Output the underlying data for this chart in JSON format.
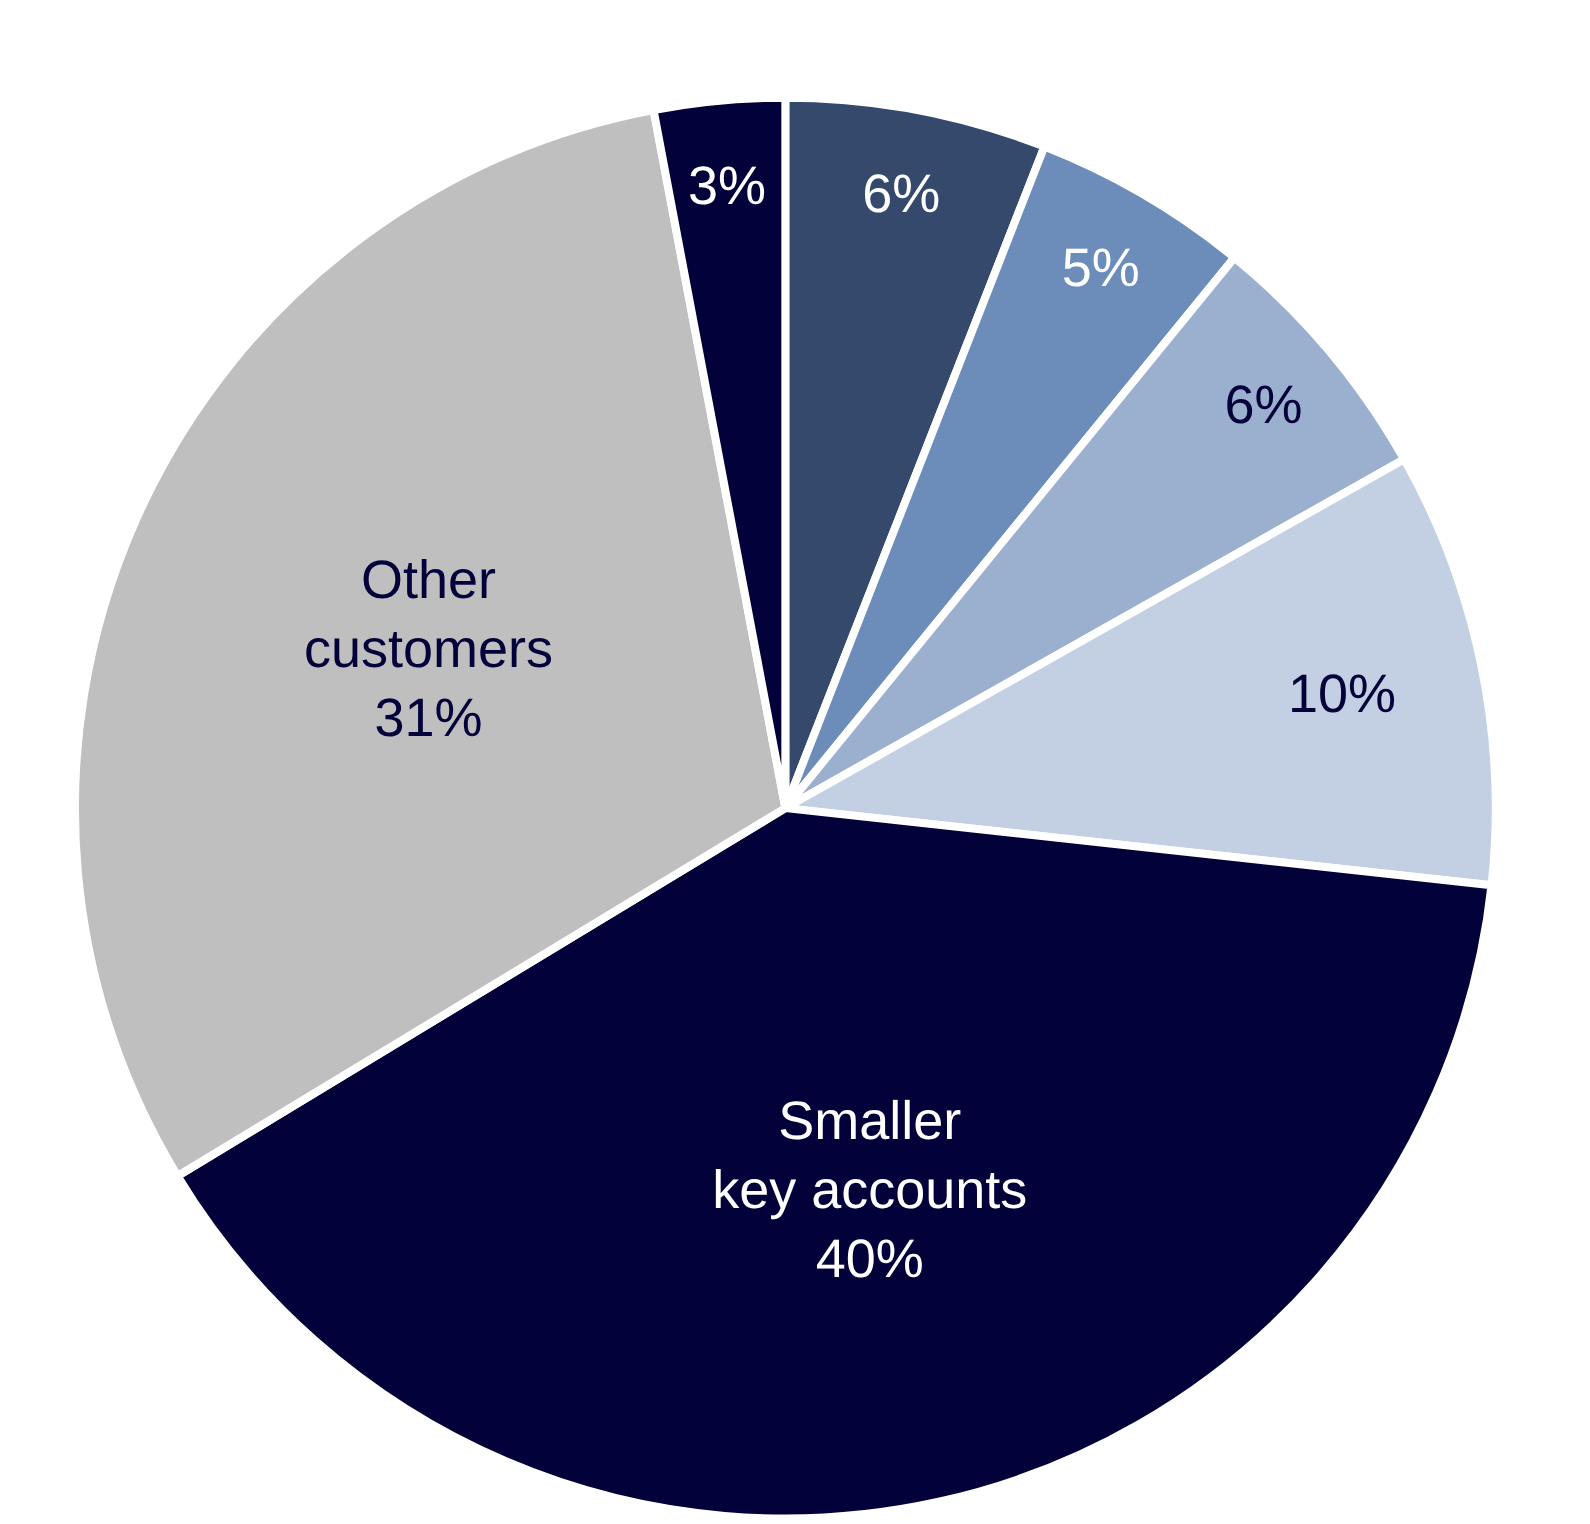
{
  "chart_data": {
    "type": "pie",
    "categories": [
      null,
      null,
      null,
      null,
      "Smaller key accounts",
      "Other customers",
      null
    ],
    "values": [
      6,
      5,
      6,
      10,
      40,
      31,
      3
    ],
    "value_labels": [
      "6%",
      "5%",
      "6%",
      "10%",
      "40%",
      "31%",
      "3%"
    ],
    "colors": [
      "#34496b",
      "#6c8cba",
      "#9bb0cf",
      "#c3cfe2",
      "#03013a",
      "#bfbfbf",
      "#03013a"
    ]
  }
}
